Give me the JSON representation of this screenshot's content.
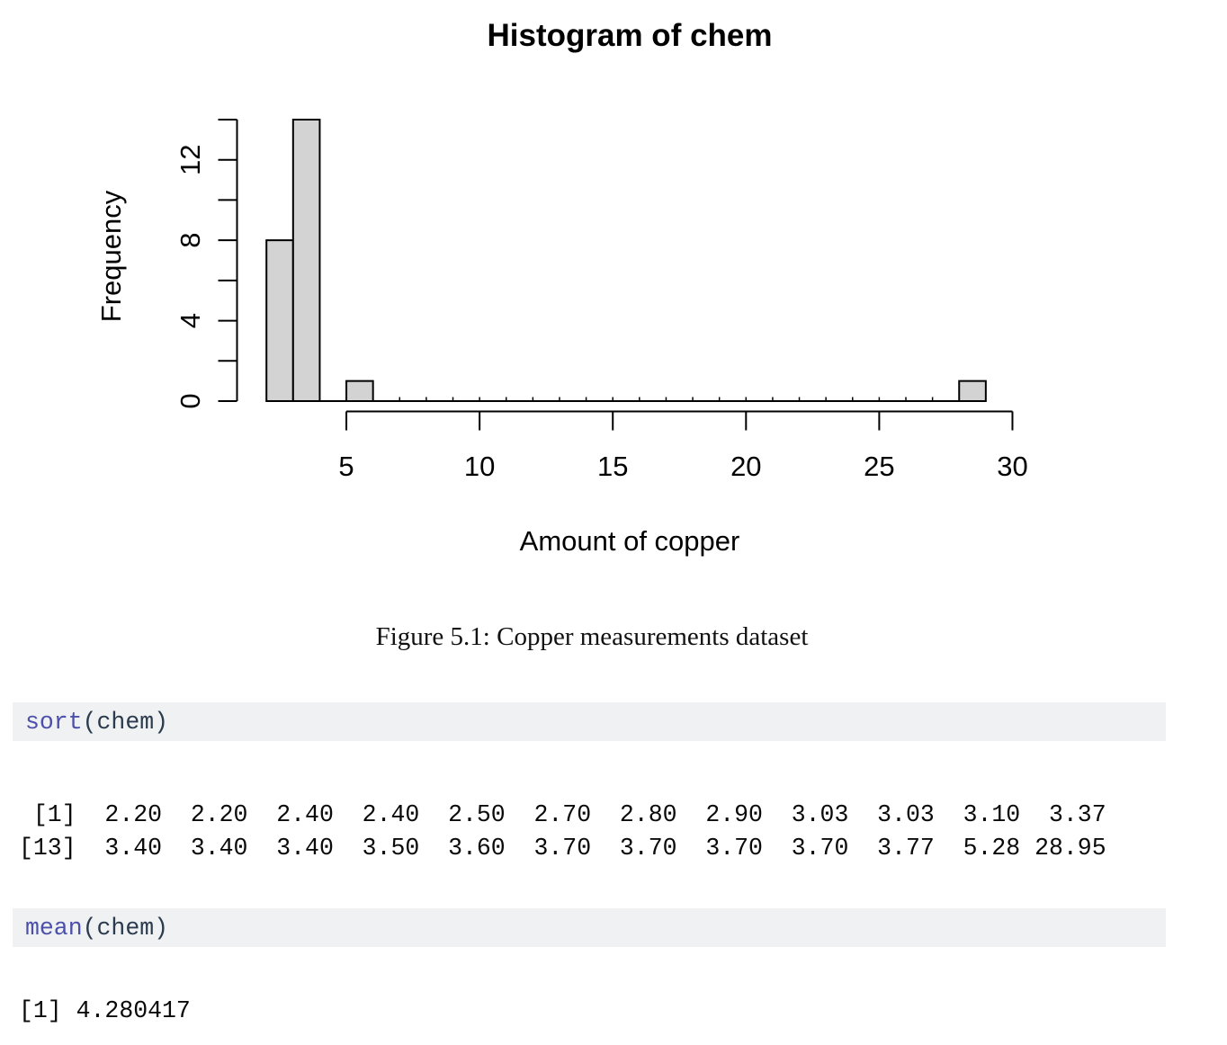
{
  "figure": {
    "caption": "Figure 5.1: Copper measurements dataset"
  },
  "chart_data": {
    "type": "bar",
    "subtype": "histogram",
    "title": "Histogram of chem",
    "xlabel": "Amount of copper",
    "ylabel": "Frequency",
    "xlim": [
      2,
      30
    ],
    "ylim": [
      0,
      14
    ],
    "bin_width": 1,
    "bins": [
      {
        "x0": 2,
        "x1": 3,
        "count": 8
      },
      {
        "x0": 3,
        "x1": 4,
        "count": 14
      },
      {
        "x0": 5,
        "x1": 6,
        "count": 1
      },
      {
        "x0": 28,
        "x1": 29,
        "count": 1
      }
    ],
    "baseline_range": [
      2,
      29
    ],
    "zero_break_marks": [
      7,
      8,
      9,
      10,
      11,
      12,
      13,
      14,
      15,
      16,
      17,
      18,
      19,
      20,
      21,
      22,
      23,
      24,
      25,
      26,
      27,
      28
    ],
    "x_ticks": [
      5,
      10,
      15,
      20,
      25,
      30
    ],
    "y_minor_ticks": [
      0,
      2,
      4,
      6,
      8,
      10,
      12,
      14
    ],
    "y_labeled_ticks": [
      0,
      4,
      8,
      12
    ],
    "grid": false,
    "legend": false,
    "bar_fill": "#d3d3d3",
    "bar_stroke": "#000000",
    "axis_color": "#000000"
  },
  "console": {
    "blocks": [
      {
        "kind": "code",
        "keyword": "sort",
        "rest": "(chem)"
      },
      {
        "kind": "output",
        "lines": [
          " [1]  2.20  2.20  2.40  2.40  2.50  2.70  2.80  2.90  3.03  3.03  3.10  3.37",
          "[13]  3.40  3.40  3.40  3.50  3.60  3.70  3.70  3.70  3.70  3.77  5.28 28.95"
        ]
      },
      {
        "kind": "code",
        "keyword": "mean",
        "rest": "(chem)"
      },
      {
        "kind": "output",
        "lines": [
          "[1] 4.280417"
        ]
      }
    ]
  },
  "colors": {
    "code_bg": "#eff1f3",
    "keyword": "#4d50ab",
    "code_text": "#2b3b4d",
    "output_text": "#0a0a0a"
  }
}
